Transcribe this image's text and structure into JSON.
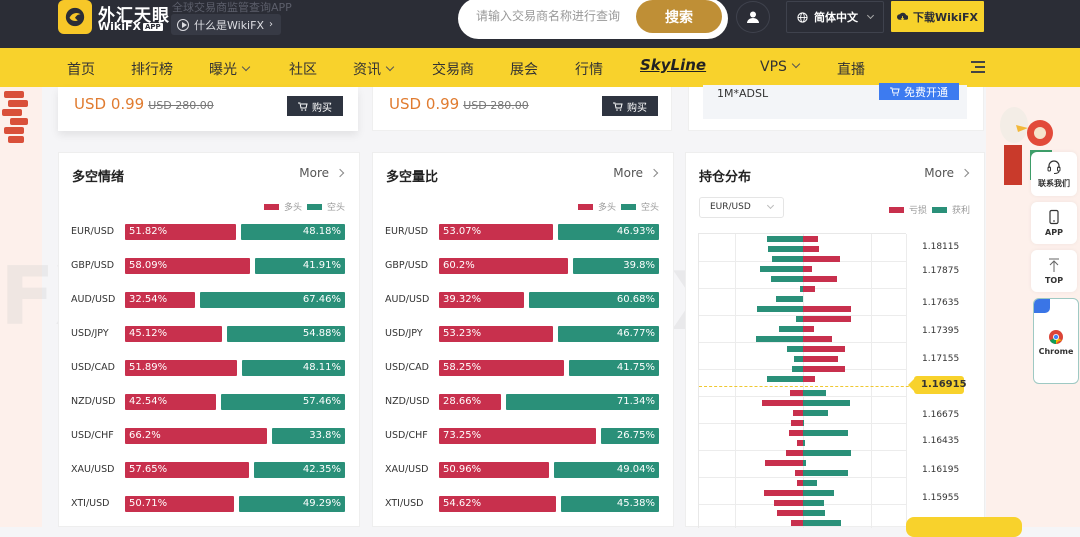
{
  "header": {
    "brand_cn": "外汇天眼",
    "brand_en": "WikiFX",
    "brand_badge": "APP",
    "tagline": "全球交易商监管查询APP",
    "what_is": "什么是WikiFX",
    "search_placeholder": "请输入交易商名称进行查询",
    "search_button": "搜索",
    "language": "简体中文",
    "download": "下载WikiFX"
  },
  "nav": {
    "items": [
      "首页",
      "排行榜",
      "曝光",
      "社区",
      "资讯",
      "交易商",
      "展会",
      "行情",
      "SkyLine",
      "VPS",
      "直播"
    ]
  },
  "promos": [
    {
      "price": "USD 0.99",
      "old_price": "USD 280.00",
      "button": "购买"
    },
    {
      "price": "USD 0.99",
      "old_price": "USD 280.00",
      "button": "购买"
    },
    {
      "spec": "1M*ADSL",
      "button": "免费开通"
    }
  ],
  "colors": {
    "long": "#c8304d",
    "short": "#2a9079",
    "accent": "#f8d22c",
    "header_bg": "#2b2d36",
    "search_btn": "#bf8f36"
  },
  "sentiment": {
    "title": "多空情绪",
    "more": "More",
    "legend": [
      "多头",
      "空头"
    ],
    "rows": [
      {
        "pair": "EUR/USD",
        "long": "51.82%",
        "short": "48.18%"
      },
      {
        "pair": "GBP/USD",
        "long": "58.09%",
        "short": "41.91%"
      },
      {
        "pair": "AUD/USD",
        "long": "32.54%",
        "short": "67.46%"
      },
      {
        "pair": "USD/JPY",
        "long": "45.12%",
        "short": "54.88%"
      },
      {
        "pair": "USD/CAD",
        "long": "51.89%",
        "short": "48.11%"
      },
      {
        "pair": "NZD/USD",
        "long": "42.54%",
        "short": "57.46%"
      },
      {
        "pair": "USD/CHF",
        "long": "66.2%",
        "short": "33.8%"
      },
      {
        "pair": "XAU/USD",
        "long": "57.65%",
        "short": "42.35%"
      },
      {
        "pair": "XTI/USD",
        "long": "50.71%",
        "short": "49.29%"
      }
    ]
  },
  "volume": {
    "title": "多空量比",
    "more": "More",
    "legend": [
      "多头",
      "空头"
    ],
    "rows": [
      {
        "pair": "EUR/USD",
        "long": "53.07%",
        "short": "46.93%"
      },
      {
        "pair": "GBP/USD",
        "long": "60.2%",
        "short": "39.8%"
      },
      {
        "pair": "AUD/USD",
        "long": "39.32%",
        "short": "60.68%"
      },
      {
        "pair": "USD/JPY",
        "long": "53.23%",
        "short": "46.77%"
      },
      {
        "pair": "USD/CAD",
        "long": "58.25%",
        "short": "41.75%"
      },
      {
        "pair": "NZD/USD",
        "long": "28.66%",
        "short": "71.34%"
      },
      {
        "pair": "USD/CHF",
        "long": "73.25%",
        "short": "26.75%"
      },
      {
        "pair": "XAU/USD",
        "long": "50.96%",
        "short": "49.04%"
      },
      {
        "pair": "XTI/USD",
        "long": "54.62%",
        "short": "45.38%"
      }
    ]
  },
  "positions": {
    "title": "持仓分布",
    "more": "More",
    "selected_pair": "EUR/USD",
    "legend": [
      "亏损",
      "获利"
    ],
    "price_labels": [
      "1.18115",
      "1.17875",
      "1.17635",
      "1.17395",
      "1.17155",
      "1.16675",
      "1.16435",
      "1.16195",
      "1.15955"
    ],
    "current_price": "1.16915",
    "bars_above": [
      [
        36,
        15
      ],
      [
        35,
        16
      ],
      [
        31,
        37
      ],
      [
        43,
        9
      ],
      [
        32,
        34
      ],
      [
        3,
        12
      ],
      [
        27,
        0
      ],
      [
        46,
        48
      ],
      [
        7,
        48
      ],
      [
        24,
        11
      ],
      [
        47,
        29
      ],
      [
        16,
        42
      ],
      [
        9,
        35
      ],
      [
        11,
        42
      ],
      [
        36,
        12
      ]
    ],
    "bars_below": [
      [
        13,
        23
      ],
      [
        41,
        47
      ],
      [
        10,
        25
      ],
      [
        12,
        1
      ],
      [
        14,
        45
      ],
      [
        6,
        2
      ],
      [
        17,
        48
      ],
      [
        38,
        3
      ],
      [
        8,
        45
      ],
      [
        6,
        14
      ],
      [
        39,
        31
      ],
      [
        29,
        21
      ],
      [
        26,
        22
      ],
      [
        12,
        38
      ]
    ]
  },
  "floating": {
    "contact": "联系我们",
    "app": "APP",
    "top": "TOP",
    "chrome": "Chrome"
  }
}
